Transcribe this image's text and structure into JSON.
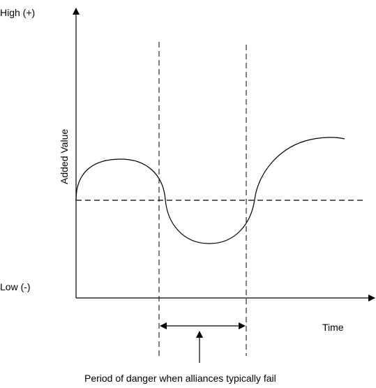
{
  "labels": {
    "high": "High (+)",
    "low": "Low (-)",
    "y_axis": "Added Value",
    "x_axis": "Time",
    "caption": "Period of danger when alliances typically fail"
  },
  "colors": {
    "stroke": "#000000",
    "background": "#ffffff"
  }
}
